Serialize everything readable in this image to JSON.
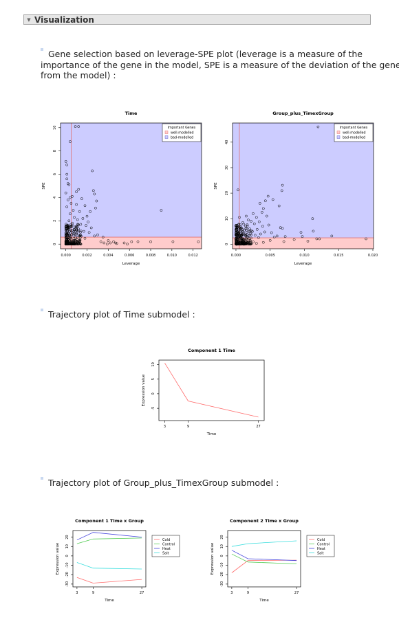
{
  "section": {
    "title": "Visualization"
  },
  "paragraphs": {
    "spe_intro": "Gene selection based on leverage-SPE plot (leverage is a measure of the importance of the gene in the model, SPE is a measure of the deviation of the gene from the model) :",
    "spe_intro_lines": [
      "Gene selection based on leverage-SPE plot (leverage is a measure of the",
      "importance of the gene in the model, SPE is a measure of the deviation of the gene",
      "from the model) :"
    ],
    "time_traj": "Trajectory plot of Time submodel :",
    "group_traj": "Trajectory plot of Group_plus_TimexGroup submodel :"
  },
  "colors": {
    "bad_fill": "#ccccff",
    "well_fill": "#ffcccc",
    "threshold_line": "#e07070",
    "cold": "#ff6b6b",
    "control": "#55cc55",
    "heat": "#4444dd",
    "salt": "#33dddd"
  },
  "chart_data": [
    {
      "type": "scatter",
      "title": "Time",
      "xlabel": "Leverage",
      "ylabel": "SPE",
      "xlim": [
        -0.0005,
        0.0128
      ],
      "ylim": [
        -0.4,
        10.4
      ],
      "xticks": [
        "0.000",
        "0.002",
        "0.004",
        "0.006",
        "0.008",
        "0.010",
        "0.012"
      ],
      "xtick_values": [
        0,
        0.002,
        0.004,
        0.006,
        0.008,
        0.01,
        0.012
      ],
      "yticks": [
        "0",
        "2",
        "4",
        "6",
        "8",
        "10"
      ],
      "ytick_values": [
        0,
        2,
        4,
        6,
        8,
        10
      ],
      "spe_threshold": 0.6,
      "leverage_threshold": 0.0005,
      "legend": {
        "title": "Important Genes",
        "entries": [
          "well-modelled",
          "bad-modelled"
        ],
        "placement": "top-right"
      },
      "points": [
        [
          0.0012,
          10.1
        ],
        [
          0.0009,
          10.1
        ],
        [
          0.0004,
          8.8
        ],
        [
          0.0,
          7.1
        ],
        [
          0.0001,
          6.8
        ],
        [
          0.0025,
          6.3
        ],
        [
          0.0001,
          6.0
        ],
        [
          0.0001,
          5.6
        ],
        [
          0.0002,
          5.2
        ],
        [
          0.0003,
          5.1
        ],
        [
          0.0012,
          4.7
        ],
        [
          0.001,
          4.5
        ],
        [
          0.0026,
          4.6
        ],
        [
          0.0,
          4.4
        ],
        [
          0.0027,
          4.3
        ],
        [
          0.0006,
          4.1
        ],
        [
          0.0004,
          4.0
        ],
        [
          0.0015,
          3.9
        ],
        [
          0.0002,
          3.8
        ],
        [
          0.0029,
          3.7
        ],
        [
          0.0005,
          3.5
        ],
        [
          0.001,
          3.4
        ],
        [
          0.0018,
          3.3
        ],
        [
          0.0001,
          3.2
        ],
        [
          0.0028,
          3.1
        ],
        [
          0.009,
          2.9
        ],
        [
          0.0007,
          2.9
        ],
        [
          0.0013,
          2.8
        ],
        [
          0.0023,
          2.8
        ],
        [
          0.0004,
          2.6
        ],
        [
          0.002,
          2.4
        ],
        [
          0.0008,
          2.3
        ],
        [
          0.0016,
          2.2
        ],
        [
          0.0011,
          2.1
        ],
        [
          0.0003,
          2.0
        ],
        [
          0.0021,
          1.9
        ],
        [
          0.0006,
          1.8
        ],
        [
          0.0014,
          1.7
        ],
        [
          0.0019,
          1.6
        ],
        [
          0.0009,
          1.5
        ],
        [
          0.0024,
          1.4
        ],
        [
          0.0012,
          1.3
        ],
        [
          0.0005,
          1.2
        ],
        [
          0.0017,
          1.1
        ],
        [
          0.0022,
          1.0
        ],
        [
          0.0007,
          0.9
        ],
        [
          0.003,
          0.8
        ],
        [
          0.0013,
          0.7
        ],
        [
          0.0027,
          0.7
        ],
        [
          0.0035,
          0.6
        ],
        [
          0.0018,
          0.5
        ],
        [
          0.004,
          0.3
        ],
        [
          0.0045,
          0.2
        ],
        [
          0.0062,
          0.2
        ],
        [
          0.0068,
          0.2
        ],
        [
          0.008,
          0.2
        ],
        [
          0.0101,
          0.2
        ],
        [
          0.0125,
          0.2
        ],
        [
          0.0055,
          0.1
        ],
        [
          0.0036,
          0.1
        ],
        [
          0.0042,
          0.1
        ],
        [
          0.0048,
          0.05
        ],
        [
          0.0033,
          0.2
        ],
        [
          0.0039,
          0.0
        ],
        [
          0.0058,
          0.0
        ],
        [
          0.0047,
          0.1
        ]
      ]
    },
    {
      "type": "scatter",
      "title": "Group_plus_TimexGroup",
      "xlabel": "Leverage",
      "ylabel": "SPE",
      "xlim": [
        -0.0005,
        0.0201
      ],
      "ylim": [
        -1.8,
        47.5
      ],
      "xticks": [
        "0.000",
        "0.005",
        "0.010",
        "0.015",
        "0.020"
      ],
      "xtick_values": [
        0,
        0.005,
        0.01,
        0.015,
        0.02
      ],
      "yticks": [
        "0",
        "10",
        "20",
        "30",
        "40"
      ],
      "ytick_values": [
        0,
        10,
        20,
        30,
        40
      ],
      "spe_threshold": 2.5,
      "leverage_threshold": 0.0005,
      "legend": {
        "title": "Important Genes",
        "entries": [
          "well-modelled",
          "bad-modelled"
        ],
        "placement": "top-right"
      },
      "points": [
        [
          0.012,
          46.0
        ],
        [
          0.0003,
          21.3
        ],
        [
          0.0068,
          23.1
        ],
        [
          0.0067,
          21.0
        ],
        [
          0.0047,
          18.8
        ],
        [
          0.0054,
          17.5
        ],
        [
          0.0043,
          17.0
        ],
        [
          0.0035,
          16.0
        ],
        [
          0.0063,
          15.0
        ],
        [
          0.004,
          14.0
        ],
        [
          0.0038,
          12.5
        ],
        [
          0.0025,
          12.0
        ],
        [
          0.0045,
          11.0
        ],
        [
          0.0015,
          11.0
        ],
        [
          0.003,
          10.5
        ],
        [
          0.0112,
          10.0
        ],
        [
          0.0005,
          10.5
        ],
        [
          0.0018,
          9.5
        ],
        [
          0.0022,
          9.0
        ],
        [
          0.0034,
          8.8
        ],
        [
          0.001,
          8.5
        ],
        [
          0.0027,
          8.0
        ],
        [
          0.0048,
          7.5
        ],
        [
          0.0014,
          7.2
        ],
        [
          0.0039,
          7.0
        ],
        [
          0.0007,
          6.8
        ],
        [
          0.0065,
          6.5
        ],
        [
          0.0068,
          6.2
        ],
        [
          0.002,
          6.0
        ],
        [
          0.0031,
          5.8
        ],
        [
          0.0012,
          5.5
        ],
        [
          0.0024,
          5.0
        ],
        [
          0.0042,
          4.8
        ],
        [
          0.0113,
          5.1
        ],
        [
          0.0095,
          4.6
        ],
        [
          0.0052,
          4.5
        ],
        [
          0.0009,
          4.3
        ],
        [
          0.0036,
          4.0
        ],
        [
          0.0016,
          3.8
        ],
        [
          0.0028,
          3.5
        ],
        [
          0.0097,
          3.0
        ],
        [
          0.006,
          3.2
        ],
        [
          0.0072,
          3.0
        ],
        [
          0.014,
          3.2
        ],
        [
          0.0056,
          2.8
        ],
        [
          0.0033,
          2.6
        ],
        [
          0.0003,
          2.5
        ],
        [
          0.0118,
          2.1
        ],
        [
          0.0122,
          2.1
        ],
        [
          0.019,
          2.1
        ],
        [
          0.0085,
          1.8
        ],
        [
          0.005,
          1.5
        ],
        [
          0.0018,
          1.2
        ],
        [
          0.0025,
          0.9
        ],
        [
          0.004,
          0.7
        ],
        [
          0.001,
          0.5
        ],
        [
          0.003,
          0.3
        ],
        [
          0.007,
          1.0
        ],
        [
          0.0105,
          1.2
        ]
      ]
    },
    {
      "type": "line",
      "title": "Component 1 Time",
      "xlabel": "Time",
      "ylabel": "Expression value",
      "x": [
        3,
        9,
        27
      ],
      "xticks": [
        "3",
        "9",
        "27"
      ],
      "yticks": [
        "-5",
        "0",
        "5",
        "10"
      ],
      "ytick_values": [
        -5,
        0,
        5,
        10
      ],
      "ylim": [
        -9.2,
        11.5
      ],
      "series": [
        {
          "values": [
            10.5,
            -2.5,
            -8.0
          ],
          "color": "#ff6b6b"
        }
      ]
    },
    {
      "type": "line",
      "title": "Component 1 Time x Group",
      "xlabel": "Time",
      "ylabel": "Expression value",
      "x": [
        3,
        9,
        27
      ],
      "xticks": [
        "3",
        "9",
        "27"
      ],
      "yticks": [
        "-30",
        "-20",
        "-10",
        "0",
        "10",
        "20"
      ],
      "ytick_values": [
        -30,
        -20,
        -10,
        0,
        10,
        20
      ],
      "ylim": [
        -33,
        27
      ],
      "legend": {
        "entries": [
          "Cold",
          "Control",
          "Heat",
          "Salt"
        ],
        "placement": "right"
      },
      "series": [
        {
          "name": "Cold",
          "values": [
            -23.0,
            -29.0,
            -25.0
          ],
          "color": "#ff6b6b"
        },
        {
          "name": "Control",
          "values": [
            13.0,
            18.0,
            19.0
          ],
          "color": "#55cc55"
        },
        {
          "name": "Heat",
          "values": [
            17.0,
            25.0,
            20.0
          ],
          "color": "#4444dd"
        },
        {
          "name": "Salt",
          "values": [
            -7.0,
            -13.0,
            -14.0
          ],
          "color": "#33dddd"
        }
      ]
    },
    {
      "type": "line",
      "title": "Component 2 Time x Group",
      "xlabel": "Time",
      "ylabel": "Expression value",
      "x": [
        3,
        9,
        27
      ],
      "xticks": [
        "3",
        "9",
        "27"
      ],
      "yticks": [
        "-30",
        "-20",
        "-10",
        "0",
        "10",
        "20"
      ],
      "ytick_values": [
        -30,
        -20,
        -10,
        0,
        10,
        20
      ],
      "ylim": [
        -33,
        27
      ],
      "legend": {
        "entries": [
          "Cold",
          "Control",
          "Heat",
          "Salt"
        ],
        "placement": "right"
      },
      "series": [
        {
          "name": "Cold",
          "values": [
            -18.0,
            -5.0,
            -4.5
          ],
          "color": "#ff6b6b"
        },
        {
          "name": "Control",
          "values": [
            2.0,
            -6.5,
            -8.5
          ],
          "color": "#55cc55"
        },
        {
          "name": "Heat",
          "values": [
            6.0,
            -3.0,
            -5.0
          ],
          "color": "#4444dd"
        },
        {
          "name": "Salt",
          "values": [
            10.0,
            13.0,
            16.0
          ],
          "color": "#33dddd"
        }
      ]
    }
  ]
}
